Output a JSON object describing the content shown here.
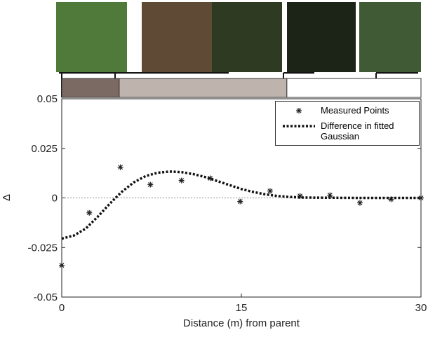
{
  "chart_data": {
    "type": "scatter",
    "xlabel": "Distance (m) from parent",
    "ylabel": "Δ",
    "xlim": [
      0,
      30
    ],
    "ylim": [
      -0.05,
      0.05
    ],
    "xticks": [
      0,
      15,
      30
    ],
    "yticks": [
      -0.05,
      -0.025,
      0,
      0.025,
      0.05
    ],
    "zero_line": true,
    "zones": [
      {
        "start": 0,
        "end": 4.8,
        "color": "#7b6a63"
      },
      {
        "start": 4.8,
        "end": 18.8,
        "color": "#bfb3ae"
      },
      {
        "start": 18.8,
        "end": 30,
        "color": "#ffffff"
      }
    ],
    "series": [
      {
        "name": "Measured Points",
        "type": "scatter",
        "color": "#222222",
        "x": [
          0,
          2.3,
          4.9,
          7.4,
          10,
          12.4,
          14.9,
          17.4,
          19.9,
          22.4,
          24.9,
          27.5,
          30
        ],
        "values": [
          -0.034,
          -0.0075,
          0.0155,
          0.0067,
          0.0088,
          0.0099,
          -0.0018,
          0.0035,
          0.001,
          0.0014,
          -0.0025,
          -0.0007,
          0
        ]
      },
      {
        "name": "Difference in fitted Gaussian",
        "type": "line",
        "color": "#111111",
        "x": [
          0,
          1,
          2,
          3,
          4,
          5,
          6,
          7,
          8,
          9,
          10,
          11,
          12,
          13,
          14,
          15,
          16,
          17,
          18,
          19,
          20,
          22,
          25,
          30
        ],
        "values": [
          -0.0205,
          -0.019,
          -0.0155,
          -0.0095,
          -0.003,
          0.003,
          0.0078,
          0.011,
          0.0127,
          0.0133,
          0.013,
          0.012,
          0.0105,
          0.0085,
          0.0065,
          0.0045,
          0.003,
          0.0018,
          0.001,
          0.0005,
          0.0002,
          0.0001,
          0,
          0
        ]
      }
    ]
  }
}
